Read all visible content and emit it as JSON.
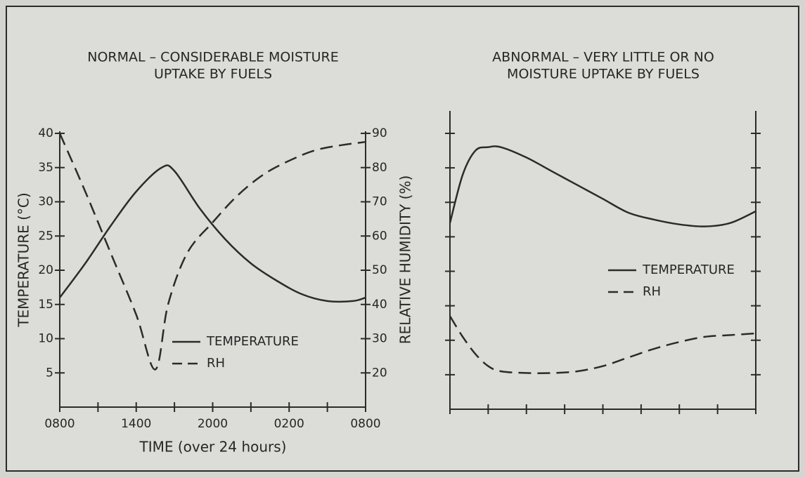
{
  "chart_data": [
    {
      "type": "line",
      "title": [
        "NORMAL – CONSIDERABLE MOISTURE",
        "UPTAKE BY FUELS"
      ],
      "ylabel": "TEMPERATURE (°C)",
      "y2label": "RELATIVE HUMIDITY (%)",
      "xlabel": "TIME (over 24 hours)",
      "xlim": [
        0,
        24
      ],
      "xticks": [
        {
          "value": 0,
          "label": "0800"
        },
        {
          "value": 6,
          "label": "1400"
        },
        {
          "value": 12,
          "label": "2000"
        },
        {
          "value": 18,
          "label": "0200"
        },
        {
          "value": 24,
          "label": "0800"
        }
      ],
      "xminorticks": [
        3,
        9,
        15,
        21
      ],
      "ylim": [
        0,
        40
      ],
      "yticks": [
        5,
        10,
        15,
        20,
        25,
        30,
        35,
        40
      ],
      "y2lim": [
        10,
        90
      ],
      "y2ticks": [
        20,
        30,
        40,
        50,
        60,
        70,
        80,
        90
      ],
      "legend": "center",
      "series": [
        {
          "name": "TEMPERATURE",
          "color": "#2b2b2b",
          "dash": "solid",
          "x": [
            0,
            2,
            4,
            6,
            8,
            9,
            11,
            13,
            15,
            17,
            19,
            21,
            23,
            24
          ],
          "values": [
            16,
            21,
            26.5,
            31.5,
            35,
            34.5,
            29,
            24.5,
            21,
            18.5,
            16.5,
            15.5,
            15.5,
            16
          ]
        },
        {
          "name": "RH",
          "color": "#2b2b2b",
          "dash": "dashed",
          "axis": "y2",
          "x": [
            0,
            2,
            4,
            6,
            7.5,
            8.5,
            10,
            12,
            14,
            16,
            18,
            20,
            22,
            24
          ],
          "values": [
            90,
            73,
            55,
            37,
            21,
            40,
            55,
            64,
            72,
            78,
            82,
            85,
            86.5,
            87.5
          ]
        }
      ]
    },
    {
      "type": "line",
      "title": [
        "ABNORMAL – VERY LITTLE OR NO",
        "MOISTURE UPTAKE BY FUELS"
      ],
      "xlim": [
        0,
        24
      ],
      "xtickmarks": [
        0,
        3,
        6,
        9,
        12,
        15,
        18,
        21,
        24
      ],
      "ylim": [
        0,
        40
      ],
      "ytickmarks": [
        5,
        10,
        15,
        20,
        25,
        30,
        35,
        40
      ],
      "y2lim": [
        10,
        90
      ],
      "y2tickmarks": [
        20,
        30,
        40,
        50,
        60,
        70,
        80,
        90
      ],
      "legend": "center right",
      "series": [
        {
          "name": "TEMPERATURE",
          "color": "#2b2b2b",
          "dash": "solid",
          "x": [
            0,
            1,
            2,
            3,
            4,
            6,
            8,
            10,
            12,
            14,
            16,
            18,
            20,
            22,
            24
          ],
          "values": [
            27,
            34,
            37.5,
            38,
            38,
            36.5,
            34.5,
            32.5,
            30.5,
            28.5,
            27.5,
            26.8,
            26.5,
            27,
            28.7
          ]
        },
        {
          "name": "RH",
          "color": "#2b2b2b",
          "dash": "dashed",
          "axis": "y2",
          "x": [
            0,
            1,
            2,
            3,
            4,
            6,
            8,
            10,
            12,
            14,
            16,
            18,
            20,
            22,
            24
          ],
          "values": [
            37,
            31,
            26,
            22.5,
            21,
            20.5,
            20.5,
            21,
            22.5,
            25,
            27.5,
            29.5,
            31,
            31.5,
            32
          ]
        }
      ]
    }
  ]
}
